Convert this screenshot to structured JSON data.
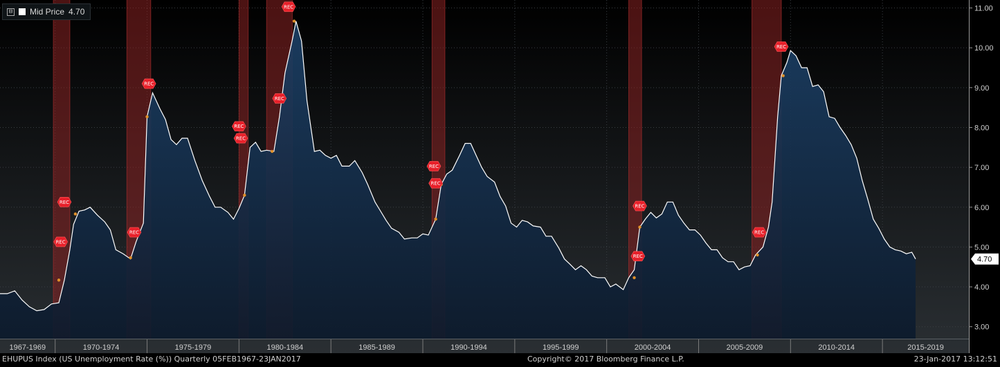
{
  "legend": {
    "toggle": "⊟",
    "label": "Mid Price",
    "value": "4.70"
  },
  "footer": {
    "left": "EHUPUS Index (US Unemployment Rate (%))  Quarterly 05FEB1967-23JAN2017",
    "center": "Copyright© 2017 Bloomberg Finance L.P.",
    "right": "23-Jan-2017 13:12:51"
  },
  "colors": {
    "background_top": "#000000",
    "background_bottom": "#2a2f33",
    "area_top": "#1c4066",
    "area_bottom": "#0c1a2c",
    "line": "#ffffff",
    "recession": "#8a2222",
    "rec_marker": "#e8202a"
  },
  "chart_data": {
    "type": "area",
    "ylim": [
      2.7,
      11.2
    ],
    "yticks": [
      "3.00",
      "4.00",
      "5.00",
      "6.00",
      "7.00",
      "8.00",
      "9.00",
      "10.00",
      "11.00"
    ],
    "xlim": [
      1967.0,
      2019.7
    ],
    "x_period_labels": [
      {
        "label": "1967-1969",
        "start": 1967,
        "end": 1970
      },
      {
        "label": "1970-1974",
        "start": 1970,
        "end": 1975
      },
      {
        "label": "1975-1979",
        "start": 1975,
        "end": 1980
      },
      {
        "label": "1980-1984",
        "start": 1980,
        "end": 1985
      },
      {
        "label": "1985-1989",
        "start": 1985,
        "end": 1990
      },
      {
        "label": "1990-1994",
        "start": 1990,
        "end": 1995
      },
      {
        "label": "1995-1999",
        "start": 1995,
        "end": 2000
      },
      {
        "label": "2000-2004",
        "start": 2000,
        "end": 2005
      },
      {
        "label": "2005-2009",
        "start": 2005,
        "end": 2010
      },
      {
        "label": "2010-2014",
        "start": 2010,
        "end": 2015
      },
      {
        "label": "2015-2019",
        "start": 2015,
        "end": 2020
      }
    ],
    "last_value_label": "4.70",
    "series": [
      {
        "values": [
          [
            1967.0,
            3.83
          ],
          [
            1967.4,
            3.83
          ],
          [
            1967.8,
            3.9
          ],
          [
            1968.2,
            3.67
          ],
          [
            1968.6,
            3.5
          ],
          [
            1969.0,
            3.4
          ],
          [
            1969.4,
            3.43
          ],
          [
            1969.8,
            3.57
          ],
          [
            1970.2,
            3.6
          ],
          [
            1970.5,
            4.17
          ],
          [
            1970.8,
            4.93
          ],
          [
            1971.0,
            5.57
          ],
          [
            1971.3,
            5.9
          ],
          [
            1971.6,
            5.93
          ],
          [
            1971.9,
            6.0
          ],
          [
            1972.3,
            5.8
          ],
          [
            1972.7,
            5.63
          ],
          [
            1973.0,
            5.43
          ],
          [
            1973.3,
            4.93
          ],
          [
            1973.7,
            4.83
          ],
          [
            1974.1,
            4.7
          ],
          [
            1974.4,
            5.13
          ],
          [
            1974.8,
            5.6
          ],
          [
            1975.0,
            8.27
          ],
          [
            1975.3,
            8.87
          ],
          [
            1975.7,
            8.47
          ],
          [
            1976.0,
            8.2
          ],
          [
            1976.3,
            7.7
          ],
          [
            1976.6,
            7.57
          ],
          [
            1976.9,
            7.73
          ],
          [
            1977.2,
            7.73
          ],
          [
            1977.6,
            7.17
          ],
          [
            1978.0,
            6.67
          ],
          [
            1978.4,
            6.27
          ],
          [
            1978.7,
            6.0
          ],
          [
            1979.0,
            6.0
          ],
          [
            1979.4,
            5.87
          ],
          [
            1979.7,
            5.7
          ],
          [
            1980.0,
            5.97
          ],
          [
            1980.3,
            6.3
          ],
          [
            1980.6,
            7.5
          ],
          [
            1980.9,
            7.63
          ],
          [
            1981.2,
            7.4
          ],
          [
            1981.5,
            7.43
          ],
          [
            1981.9,
            7.4
          ],
          [
            1982.2,
            8.27
          ],
          [
            1982.5,
            9.37
          ],
          [
            1982.9,
            10.2
          ],
          [
            1983.1,
            10.67
          ],
          [
            1983.4,
            10.17
          ],
          [
            1983.7,
            8.67
          ],
          [
            1984.1,
            7.4
          ],
          [
            1984.4,
            7.43
          ],
          [
            1984.7,
            7.3
          ],
          [
            1985.0,
            7.23
          ],
          [
            1985.3,
            7.3
          ],
          [
            1985.6,
            7.03
          ],
          [
            1986.0,
            7.03
          ],
          [
            1986.3,
            7.17
          ],
          [
            1986.7,
            6.87
          ],
          [
            1987.0,
            6.57
          ],
          [
            1987.4,
            6.13
          ],
          [
            1987.7,
            5.9
          ],
          [
            1988.0,
            5.67
          ],
          [
            1988.3,
            5.47
          ],
          [
            1988.7,
            5.37
          ],
          [
            1989.0,
            5.2
          ],
          [
            1989.4,
            5.23
          ],
          [
            1989.7,
            5.23
          ],
          [
            1990.0,
            5.33
          ],
          [
            1990.3,
            5.3
          ],
          [
            1990.7,
            5.7
          ],
          [
            1991.0,
            6.57
          ],
          [
            1991.3,
            6.83
          ],
          [
            1991.6,
            6.93
          ],
          [
            1992.0,
            7.3
          ],
          [
            1992.3,
            7.6
          ],
          [
            1992.6,
            7.6
          ],
          [
            1992.9,
            7.3
          ],
          [
            1993.2,
            7.0
          ],
          [
            1993.5,
            6.77
          ],
          [
            1993.9,
            6.63
          ],
          [
            1994.2,
            6.27
          ],
          [
            1994.5,
            6.03
          ],
          [
            1994.8,
            5.6
          ],
          [
            1995.1,
            5.5
          ],
          [
            1995.4,
            5.67
          ],
          [
            1995.7,
            5.63
          ],
          [
            1996.0,
            5.53
          ],
          [
            1996.4,
            5.5
          ],
          [
            1996.7,
            5.27
          ],
          [
            1997.0,
            5.27
          ],
          [
            1997.4,
            4.97
          ],
          [
            1997.7,
            4.7
          ],
          [
            1998.0,
            4.57
          ],
          [
            1998.3,
            4.43
          ],
          [
            1998.6,
            4.53
          ],
          [
            1998.9,
            4.43
          ],
          [
            1999.2,
            4.27
          ],
          [
            1999.5,
            4.23
          ],
          [
            1999.9,
            4.23
          ],
          [
            2000.2,
            4.0
          ],
          [
            2000.5,
            4.07
          ],
          [
            2000.9,
            3.93
          ],
          [
            2001.2,
            4.23
          ],
          [
            2001.5,
            4.43
          ],
          [
            2001.8,
            5.5
          ],
          [
            2002.1,
            5.7
          ],
          [
            2002.4,
            5.87
          ],
          [
            2002.7,
            5.73
          ],
          [
            2003.0,
            5.83
          ],
          [
            2003.3,
            6.13
          ],
          [
            2003.6,
            6.13
          ],
          [
            2003.9,
            5.8
          ],
          [
            2004.2,
            5.6
          ],
          [
            2004.5,
            5.43
          ],
          [
            2004.8,
            5.43
          ],
          [
            2005.1,
            5.3
          ],
          [
            2005.4,
            5.1
          ],
          [
            2005.7,
            4.93
          ],
          [
            2006.0,
            4.93
          ],
          [
            2006.3,
            4.73
          ],
          [
            2006.6,
            4.63
          ],
          [
            2006.9,
            4.63
          ],
          [
            2007.2,
            4.43
          ],
          [
            2007.5,
            4.5
          ],
          [
            2007.8,
            4.53
          ],
          [
            2008.1,
            4.8
          ],
          [
            2008.5,
            5.0
          ],
          [
            2008.8,
            5.5
          ],
          [
            2009.0,
            6.13
          ],
          [
            2009.3,
            8.27
          ],
          [
            2009.5,
            9.3
          ],
          [
            2009.8,
            9.63
          ],
          [
            2010.0,
            9.93
          ],
          [
            2010.3,
            9.8
          ],
          [
            2010.6,
            9.5
          ],
          [
            2010.9,
            9.5
          ],
          [
            2011.2,
            9.03
          ],
          [
            2011.5,
            9.07
          ],
          [
            2011.8,
            8.9
          ],
          [
            2012.1,
            8.27
          ],
          [
            2012.4,
            8.23
          ],
          [
            2012.7,
            8.0
          ],
          [
            2013.0,
            7.8
          ],
          [
            2013.3,
            7.57
          ],
          [
            2013.6,
            7.23
          ],
          [
            2013.9,
            6.67
          ],
          [
            2014.2,
            6.2
          ],
          [
            2014.5,
            5.7
          ],
          [
            2014.8,
            5.47
          ],
          [
            2015.1,
            5.2
          ],
          [
            2015.4,
            5.0
          ],
          [
            2015.7,
            4.93
          ],
          [
            2016.0,
            4.9
          ],
          [
            2016.3,
            4.83
          ],
          [
            2016.6,
            4.87
          ],
          [
            2016.8,
            4.7
          ]
        ]
      }
    ],
    "recessions": [
      [
        1969.9,
        1970.8
      ],
      [
        1973.9,
        1975.2
      ],
      [
        1980.0,
        1980.5
      ],
      [
        1981.5,
        1982.9
      ],
      [
        1990.5,
        1991.2
      ],
      [
        2001.2,
        2001.9
      ],
      [
        2007.9,
        2009.5
      ]
    ],
    "rec_markers": [
      {
        "x": 1970.3,
        "y": 5.13,
        "label": "REC"
      },
      {
        "x": 1970.5,
        "y": 6.13,
        "label": "REC"
      },
      {
        "x": 1974.3,
        "y": 5.37,
        "label": "REC"
      },
      {
        "x": 1975.1,
        "y": 9.1,
        "label": "REC"
      },
      {
        "x": 1980.0,
        "y": 8.03,
        "label": "REC"
      },
      {
        "x": 1980.1,
        "y": 7.73,
        "label": "REC"
      },
      {
        "x": 1982.2,
        "y": 8.73,
        "label": "REC"
      },
      {
        "x": 1982.7,
        "y": 11.03,
        "label": "REC"
      },
      {
        "x": 1990.6,
        "y": 7.03,
        "label": "REC"
      },
      {
        "x": 1990.7,
        "y": 6.6,
        "label": "REC"
      },
      {
        "x": 2001.7,
        "y": 4.77,
        "label": "REC"
      },
      {
        "x": 2001.8,
        "y": 6.03,
        "label": "REC"
      },
      {
        "x": 2008.3,
        "y": 5.37,
        "label": "REC"
      },
      {
        "x": 2009.5,
        "y": 10.03,
        "label": "REC"
      }
    ],
    "rec_points": [
      [
        1970.2,
        4.17
      ],
      [
        1971.1,
        5.83
      ],
      [
        1974.1,
        4.73
      ],
      [
        1975.0,
        8.27
      ],
      [
        1980.3,
        6.3
      ],
      [
        1981.8,
        7.4
      ],
      [
        1983.0,
        10.67
      ],
      [
        1990.7,
        5.7
      ],
      [
        1991.0,
        6.57
      ],
      [
        2001.5,
        4.23
      ],
      [
        2001.8,
        5.5
      ],
      [
        2008.2,
        4.8
      ],
      [
        2009.6,
        9.3
      ]
    ]
  }
}
